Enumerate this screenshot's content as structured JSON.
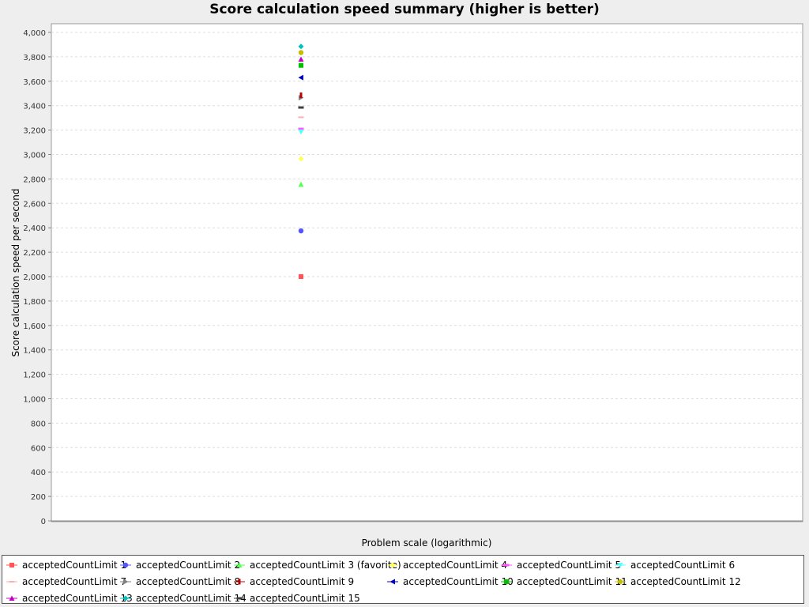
{
  "chart_data": {
    "type": "scatter",
    "title": "Score calculation speed summary (higher is better)",
    "xlabel": "Problem scale (logarithmic)",
    "ylabel": "Score calculation speed per second",
    "x_scale": "log",
    "ylim": [
      0,
      4000
    ],
    "yticks": [
      "0",
      "200",
      "400",
      "600",
      "800",
      "1,000",
      "1,200",
      "1,400",
      "1,600",
      "1,800",
      "2,000",
      "2,200",
      "2,400",
      "2,600",
      "2,800",
      "3,000",
      "3,200",
      "3,400",
      "3,600",
      "3,800",
      "4,000"
    ],
    "grid": true,
    "legend_position": "bottom",
    "series": [
      {
        "name": "acceptedCountLimit 1",
        "value": 2000,
        "color": "#ff5555",
        "marker": "square"
      },
      {
        "name": "acceptedCountLimit 2",
        "value": 2375,
        "color": "#5555ff",
        "marker": "circle"
      },
      {
        "name": "acceptedCountLimit 3 (favorite)",
        "value": 2755,
        "color": "#55ff55",
        "marker": "triangle-up"
      },
      {
        "name": "acceptedCountLimit 4",
        "value": 2965,
        "color": "#ffff55",
        "marker": "diamond"
      },
      {
        "name": "acceptedCountLimit 5",
        "value": 3210,
        "color": "#ff55ff",
        "marker": "hbar"
      },
      {
        "name": "acceptedCountLimit 6",
        "value": 3185,
        "color": "#55ffff",
        "marker": "triangle-down"
      },
      {
        "name": "acceptedCountLimit 7",
        "value": 3305,
        "color": "#ffafaf",
        "marker": "hline"
      },
      {
        "name": "acceptedCountLimit 8",
        "value": 3465,
        "color": "#808080",
        "marker": "triangle-right"
      },
      {
        "name": "acceptedCountLimit 9",
        "value": 3485,
        "color": "#c00000",
        "marker": "vbar"
      },
      {
        "name": "acceptedCountLimit 10",
        "value": 3630,
        "color": "#0000c0",
        "marker": "triangle-left"
      },
      {
        "name": "acceptedCountLimit 11",
        "value": 3730,
        "color": "#00c000",
        "marker": "square"
      },
      {
        "name": "acceptedCountLimit 12",
        "value": 3835,
        "color": "#c0c000",
        "marker": "circle"
      },
      {
        "name": "acceptedCountLimit 13",
        "value": 3780,
        "color": "#c000c0",
        "marker": "triangle-up"
      },
      {
        "name": "acceptedCountLimit 14",
        "value": 3885,
        "color": "#00c0c0",
        "marker": "diamond"
      },
      {
        "name": "acceptedCountLimit 15",
        "value": 3385,
        "color": "#404040",
        "marker": "hbar"
      }
    ]
  }
}
